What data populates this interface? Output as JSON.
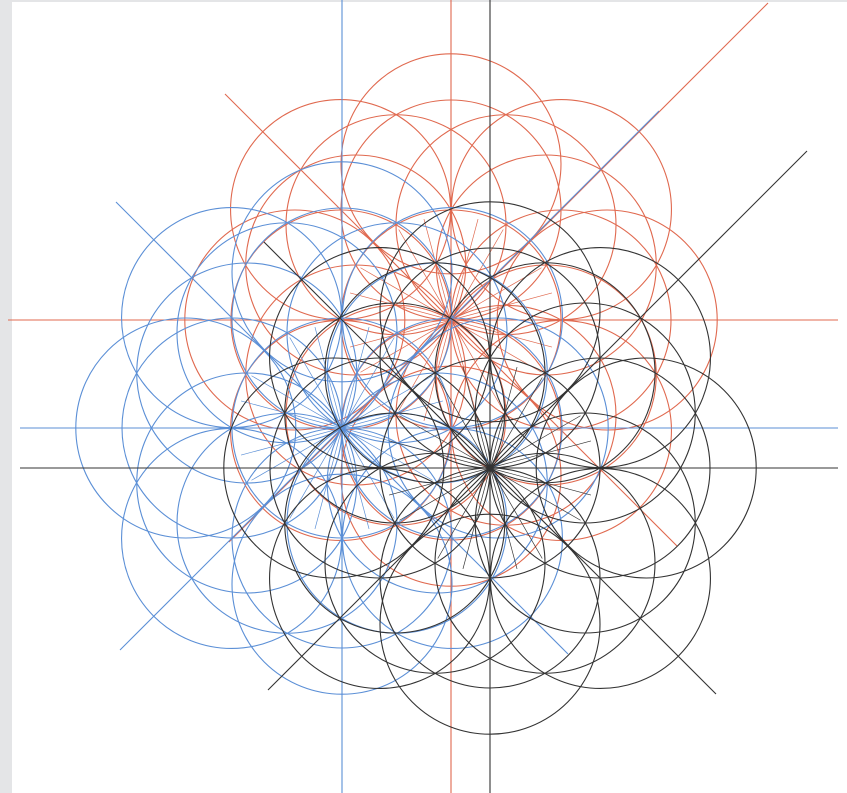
{
  "figure": {
    "background": "#ffffff",
    "margin_color": "#e4e5e7",
    "groups": [
      {
        "id": "red",
        "color": "#e0694f"
      },
      {
        "id": "blue",
        "color": "#5b8fd6"
      },
      {
        "id": "black",
        "color": "#333333"
      }
    ]
  }
}
